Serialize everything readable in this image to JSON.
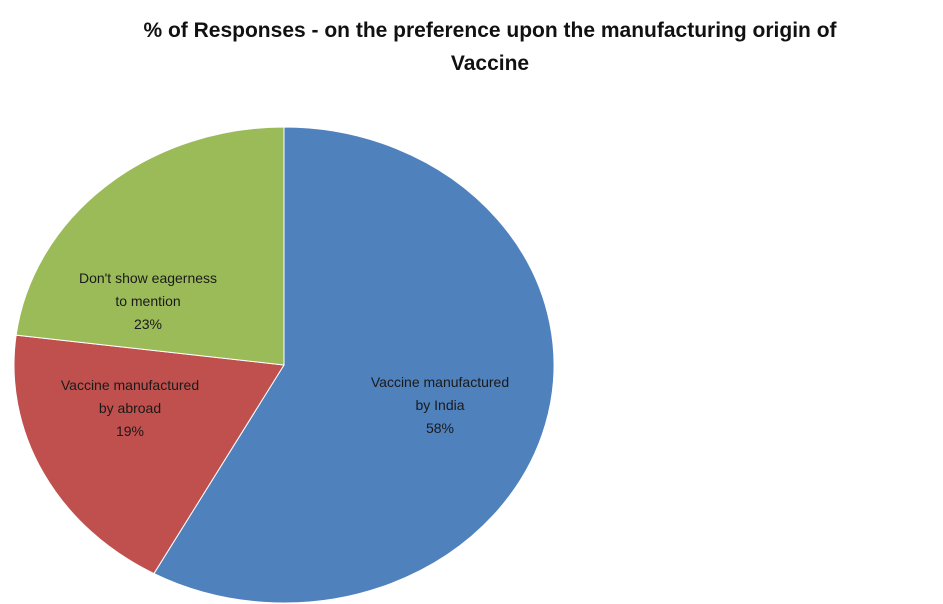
{
  "chart_data": {
    "type": "pie",
    "title": [
      "% of Responses - on the preference upon the manufacturing origin of",
      "Vaccine"
    ],
    "slices": [
      {
        "name": "Vaccine manufactured by India",
        "label_lines": [
          "Vaccine manufactured",
          "by India"
        ],
        "value": 58,
        "display": "58%",
        "color": "#4f81bd"
      },
      {
        "name": "Vaccine manufactured by abroad",
        "label_lines": [
          "Vaccine manufactured",
          "by abroad"
        ],
        "value": 19,
        "display": "19%",
        "color": "#c0504d"
      },
      {
        "name": "Don't show eagerness to mention",
        "label_lines": [
          "Don't show eagerness",
          "to mention"
        ],
        "value": 23,
        "display": "23%",
        "color": "#9bbb59"
      }
    ],
    "legend": false,
    "data_labels": "inside"
  }
}
